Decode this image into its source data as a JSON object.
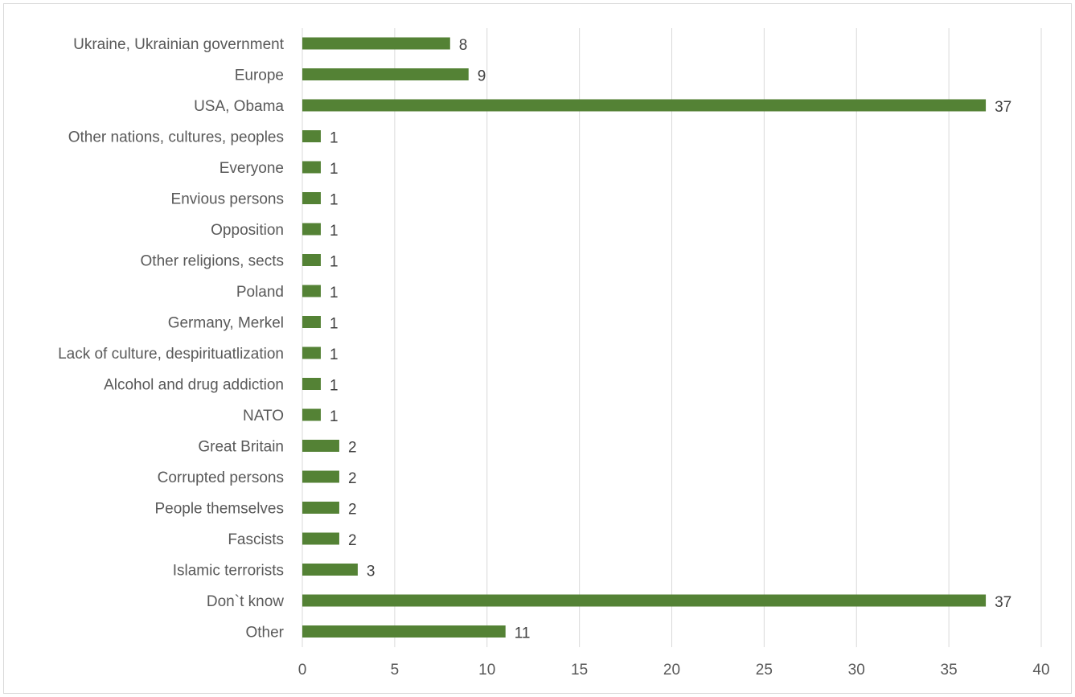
{
  "chart_data": {
    "type": "bar",
    "orientation": "horizontal",
    "categories": [
      "Ukraine, Ukrainian government",
      "Europe",
      "USA, Obama",
      "Other nations, cultures, peoples",
      "Everyone",
      "Envious persons",
      "Opposition",
      "Other religions, sects",
      "Poland",
      "Germany, Merkel",
      "Lack of culture, despirituatlization",
      "Alcohol and drug addiction",
      "NATO",
      "Great Britain",
      "Corrupted persons",
      "People themselves",
      "Fascists",
      "Islamic terrorists",
      "Don`t know",
      "Other"
    ],
    "values": [
      8,
      9,
      37,
      1,
      1,
      1,
      1,
      1,
      1,
      1,
      1,
      1,
      1,
      2,
      2,
      2,
      2,
      3,
      37,
      11
    ],
    "data_labels": [
      "8",
      "9",
      "37",
      "1",
      "1",
      "1",
      "1",
      "1",
      "1",
      "1",
      "1",
      "1",
      "1",
      "2",
      "2",
      "2",
      "2",
      "3",
      "37",
      "11"
    ],
    "xlim": [
      0,
      40
    ],
    "x_ticks": [
      "0",
      "5",
      "10",
      "15",
      "20",
      "25",
      "30",
      "35",
      "40"
    ],
    "x_tick_values": [
      0,
      5,
      10,
      15,
      20,
      25,
      30,
      35,
      40
    ],
    "grid": "vertical",
    "legend": "none",
    "bar_color": "#548235",
    "title": "",
    "xlabel": "",
    "ylabel": ""
  }
}
